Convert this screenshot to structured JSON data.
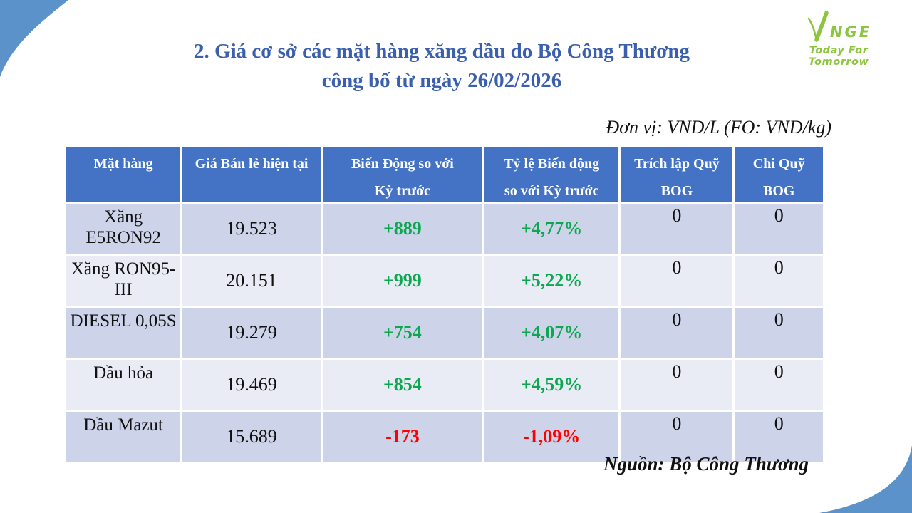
{
  "slide": {
    "title_line1": "2. Giá cơ sở các mặt hàng xăng dầu do Bộ Công Thương",
    "title_line2": "công bố từ ngày 26/02/2026",
    "unit_note": "Đơn vị: VND/L (FO: VND/kg)",
    "source_note": "Nguồn: Bộ Công Thương"
  },
  "logo": {
    "nge": "NGE",
    "tagline": "Today For Tomorrow"
  },
  "table": {
    "headers": [
      {
        "line1": "Mặt hàng",
        "line2": ""
      },
      {
        "line1": "Giá Bán lẻ hiện tại",
        "line2": ""
      },
      {
        "line1": "Biến Động so với",
        "line2": "Kỳ trước"
      },
      {
        "line1": "Tỷ lệ Biến động",
        "line2": "so với Kỳ trước"
      },
      {
        "line1": "Trích lập Quỹ",
        "line2": "BOG"
      },
      {
        "line1": "Chi Quỹ",
        "line2": "BOG"
      }
    ],
    "col_widths_pct": [
      15.3,
      18.5,
      21.4,
      18.0,
      15.0,
      11.8
    ],
    "rows": [
      {
        "name": "Xăng E5RON92",
        "price": "19.523",
        "change": "+889",
        "change_pct": "+4,77%",
        "trich_lap_quy_bog": "0",
        "chi_quy_bog": "0",
        "trend": "up"
      },
      {
        "name": "Xăng RON95-III",
        "price": "20.151",
        "change": "+999",
        "change_pct": "+5,22%",
        "trich_lap_quy_bog": "0",
        "chi_quy_bog": "0",
        "trend": "up"
      },
      {
        "name": "DIESEL 0,05S",
        "price": "19.279",
        "change": "+754",
        "change_pct": "+4,07%",
        "trich_lap_quy_bog": "0",
        "chi_quy_bog": "0",
        "trend": "up"
      },
      {
        "name": "Dầu hỏa",
        "price": "19.469",
        "change": "+854",
        "change_pct": "+4,59%",
        "trich_lap_quy_bog": "0",
        "chi_quy_bog": "0",
        "trend": "up"
      },
      {
        "name": "Dầu Mazut",
        "price": "15.689",
        "change": "-173",
        "change_pct": "-1,09%",
        "trich_lap_quy_bog": "0",
        "chi_quy_bog": "0",
        "trend": "down"
      }
    ]
  },
  "colors": {
    "header_bg": "#4472C4",
    "row_dark": "#CDD3E9",
    "row_light": "#E9EBF5",
    "positive": "#0CA750",
    "negative": "#FF0000",
    "title_blue": "#3A5FAE",
    "corner_blue": "#5B92C9",
    "logo_green": "#8CC63F"
  }
}
